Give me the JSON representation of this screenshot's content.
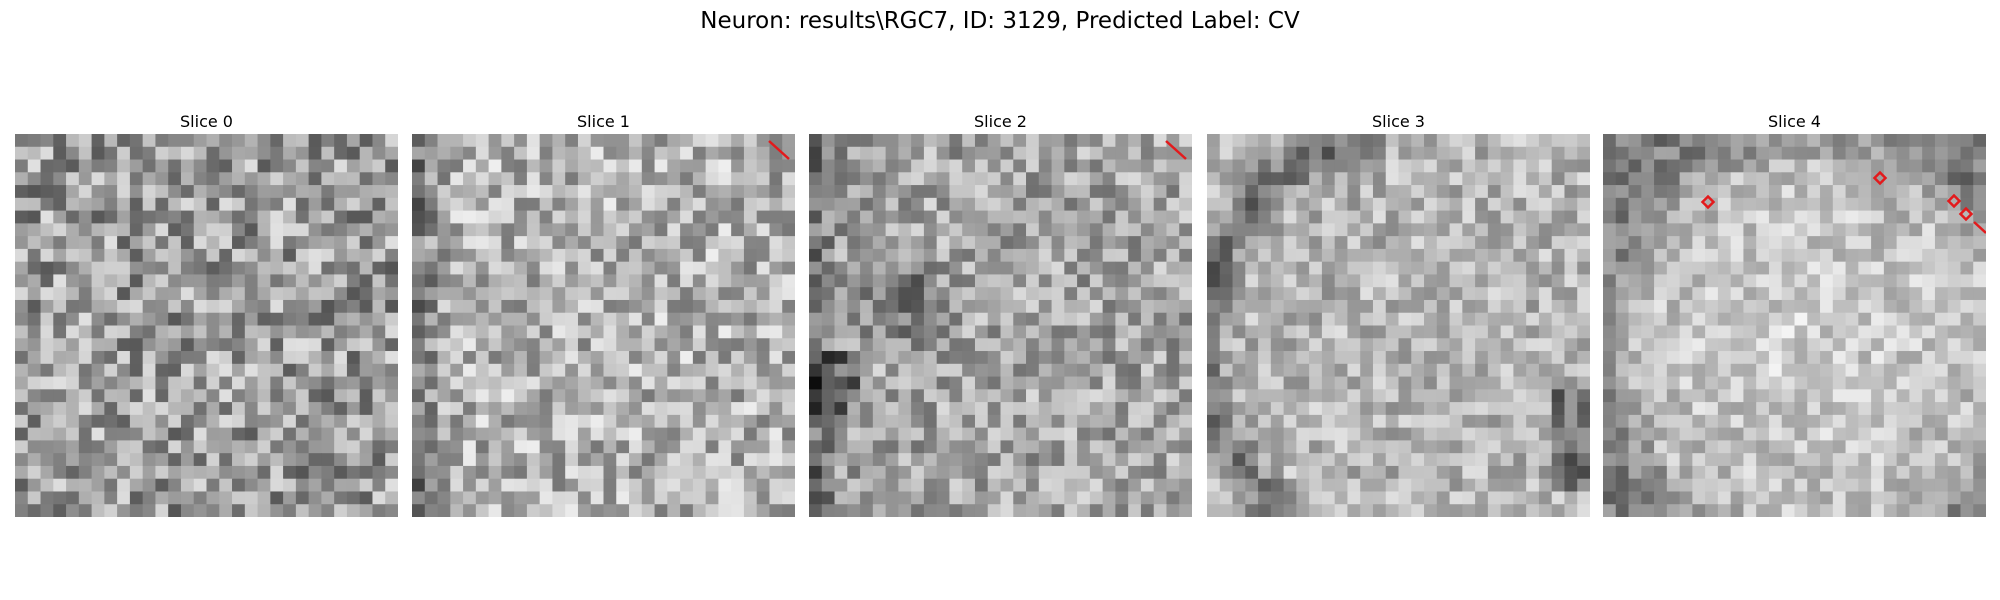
{
  "figure": {
    "title": "Neuron: results\\RGC7, ID: 3129, Predicted Label: CV"
  },
  "panels": [
    {
      "title": "Slice 0",
      "pattern": "noise",
      "seed": 11,
      "base": 155,
      "spread": 70,
      "dark_features": []
    },
    {
      "title": "Slice 1",
      "pattern": "noise",
      "seed": 23,
      "base": 178,
      "spread": 60,
      "dark_features": [
        "left-edge-dark"
      ]
    },
    {
      "title": "Slice 2",
      "pattern": "blobs",
      "seed": 37,
      "base": 165,
      "spread": 55,
      "dark_features": [
        "left-edge-dark",
        "center-left-dark",
        "bottom-left-dark"
      ]
    },
    {
      "title": "Slice 3",
      "pattern": "cell-ring",
      "seed": 51,
      "base": 180,
      "spread": 45,
      "dark_features": [
        "left-arc-dark",
        "right-bottom-dark"
      ]
    },
    {
      "title": "Slice 4",
      "pattern": "cell-ring-strong",
      "seed": 73,
      "base": 190,
      "spread": 40,
      "dark_features": [
        "outer-ring-dark"
      ]
    }
  ],
  "markers": {
    "color": "#e31a1c",
    "slice_1": [
      "line-segment"
    ],
    "slice_2": [
      "line-segment"
    ],
    "slice_4": [
      "diamond",
      "diamond",
      "diamond",
      "diamond",
      "line-segment"
    ]
  }
}
